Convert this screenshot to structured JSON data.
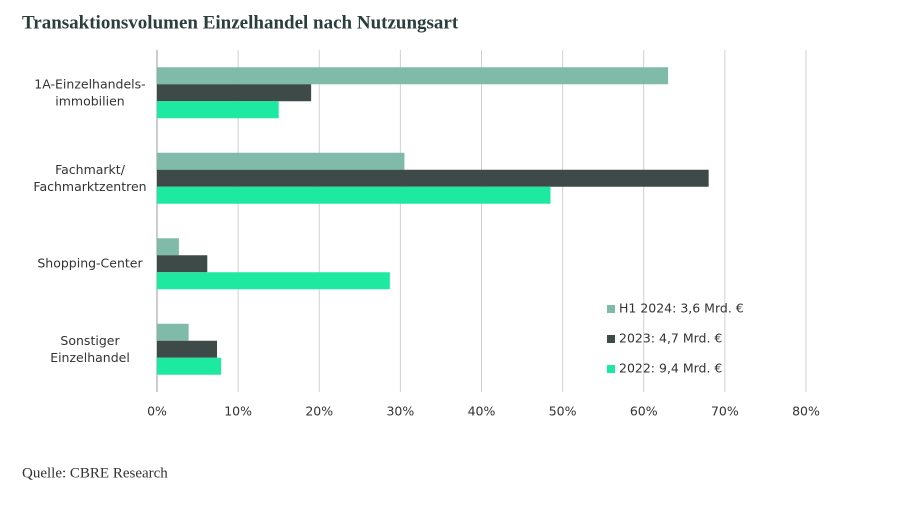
{
  "chart_data": {
    "type": "bar",
    "orientation": "horizontal",
    "title": "Transaktionsvolumen Einzelhandel nach Nutzungsart",
    "source": "Quelle: CBRE Research",
    "categories": [
      "1A-Einzelhandels-\nimmobilien",
      "Fachmarkt/\nFachmarktzentren",
      "Shopping-Center",
      "Sonstiger\nEinzelhandel"
    ],
    "series": [
      {
        "name": "H1 2024: 3,6 Mrd. €",
        "color": "#7fbba8",
        "values": [
          63,
          30.5,
          2.7,
          3.9
        ]
      },
      {
        "name": "2023: 4,7 Mrd. €",
        "color": "#3d4a48",
        "values": [
          19,
          68,
          6.2,
          7.4
        ]
      },
      {
        "name": "2022: 9,4 Mrd. €",
        "color": "#1de9a0",
        "values": [
          15,
          48.5,
          28.7,
          7.9
        ]
      }
    ],
    "xlim": [
      0,
      80
    ],
    "xticks": [
      {
        "value": 0,
        "label": "0%"
      },
      {
        "value": 10,
        "label": "10%"
      },
      {
        "value": 20,
        "label": "20%"
      },
      {
        "value": 30,
        "label": "30%"
      },
      {
        "value": 40,
        "label": "40%"
      },
      {
        "value": 50,
        "label": "50%"
      },
      {
        "value": 60,
        "label": "60%"
      },
      {
        "value": 70,
        "label": "70%"
      },
      {
        "value": 80,
        "label": "80%"
      }
    ],
    "grid": true,
    "legend": "lower-right"
  }
}
